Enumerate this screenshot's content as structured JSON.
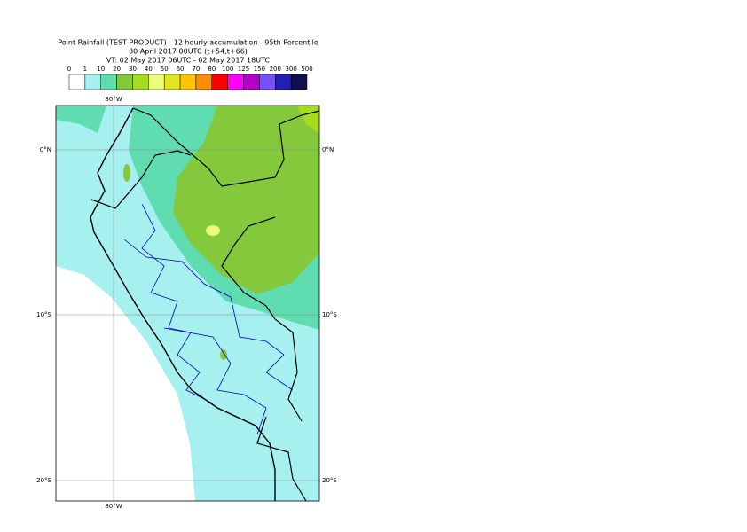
{
  "header": {
    "title_lines": [
      "Point Rainfall (TEST PRODUCT) - 12 hourly accumulation - 95th Percentile",
      "30 April 2017 00UTC (t+54,t+66)",
      "VT: 02 May 2017 06UTC - 02 May 2017 18UTC"
    ]
  },
  "legend": {
    "levels": [
      0,
      1,
      10,
      20,
      30,
      40,
      50,
      60,
      70,
      80,
      100,
      125,
      150,
      200,
      300,
      500
    ],
    "colors": [
      "#ffffff",
      "#a6f0f0",
      "#5fdcb0",
      "#84c83c",
      "#a6dc1e",
      "#ecfc78",
      "#e2e61e",
      "#ffc400",
      "#ff8c00",
      "#ff0000",
      "#ff00ff",
      "#b400c8",
      "#7850ff",
      "#2020b4",
      "#101050"
    ]
  },
  "map": {
    "top_labels": [
      "80°W"
    ],
    "bottom_labels": [
      "80°W"
    ],
    "left_labels": [
      "0°N",
      "10°S",
      "20°S"
    ],
    "right_labels": [
      "0°N",
      "10°S",
      "20°S"
    ]
  }
}
